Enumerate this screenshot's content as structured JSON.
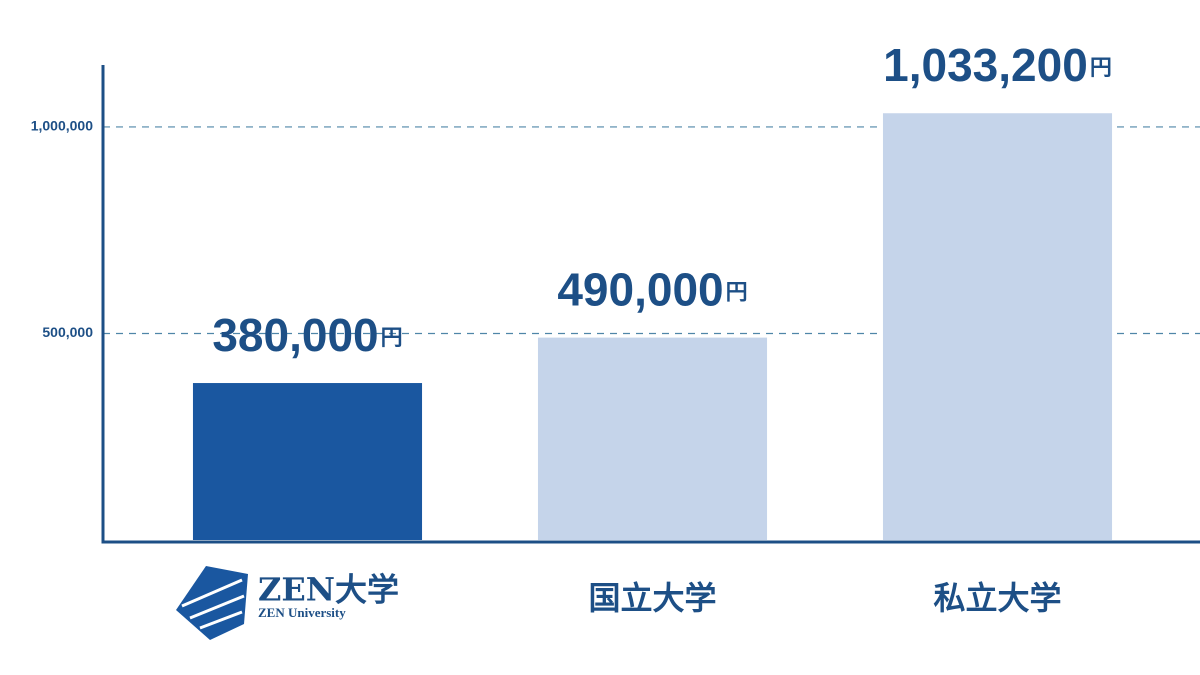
{
  "chart_data": {
    "type": "bar",
    "categories": [
      "ZEN大学",
      "国立大学",
      "私立大学"
    ],
    "category_subtitle": "ZEN University",
    "values": [
      380000,
      490000,
      1033200
    ],
    "value_labels": [
      "380,000円",
      "490,000円",
      "1,033,200円"
    ],
    "colors": [
      "#1a57a0",
      "#c5d4ea",
      "#c5d4ea"
    ],
    "ylim": [
      0,
      1150000
    ],
    "yticks": [
      {
        "value": 500000,
        "label": "500,000"
      },
      {
        "value": 1000000,
        "label": "1,000,000"
      }
    ],
    "grid": true
  }
}
